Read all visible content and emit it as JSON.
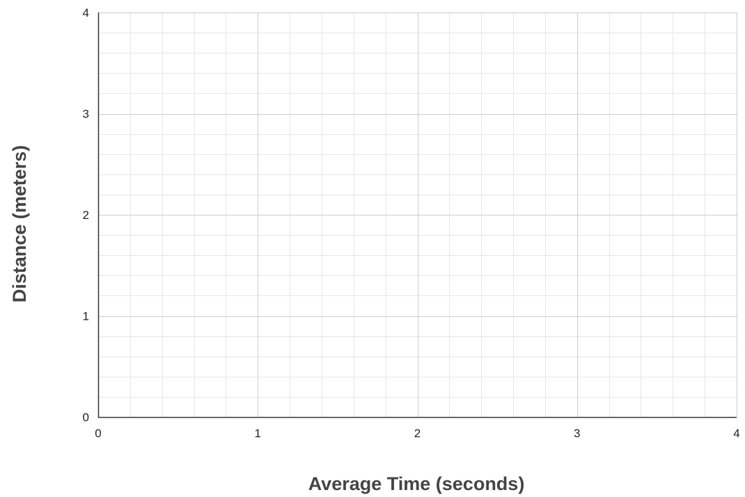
{
  "chart_data": {
    "type": "scatter",
    "title": "",
    "xlabel": "Average Time (seconds)",
    "ylabel": "Distance (meters)",
    "xlim": [
      0,
      4
    ],
    "ylim": [
      0,
      4
    ],
    "x_ticks": [
      0,
      1,
      2,
      3,
      4
    ],
    "y_ticks": [
      0,
      1,
      2,
      3,
      4
    ],
    "x_minor_step": 0.2,
    "y_minor_step": 0.2,
    "grid": true,
    "series": [],
    "colors": {
      "major_grid": "#cccccc",
      "minor_grid": "#e6e6e6",
      "axis": "#333333",
      "text": "#222222",
      "axis_title": "#444444"
    }
  }
}
